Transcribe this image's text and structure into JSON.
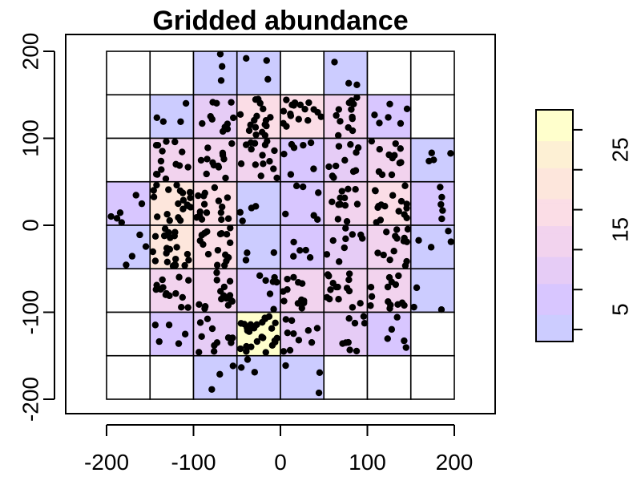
{
  "chart_data": {
    "type": "heatmap",
    "title": "Gridded abundance",
    "xlabel": "",
    "ylabel": "",
    "xlim": [
      -250,
      250
    ],
    "ylim": [
      -220,
      200
    ],
    "x_ticks": [
      -200,
      -100,
      0,
      100,
      200
    ],
    "y_ticks": [
      -200,
      -100,
      0,
      100,
      200
    ],
    "x_tick_labels": [
      "-200",
      "-100",
      "0",
      "100",
      "200"
    ],
    "y_tick_labels": [
      "-200",
      "-100",
      "0",
      "100",
      "200"
    ],
    "grid": {
      "x_edges": [
        -200,
        -150,
        -100,
        -50,
        0,
        50,
        100,
        150,
        200
      ],
      "y_edges": [
        -200,
        -150,
        -100,
        -50,
        0,
        50,
        100,
        150,
        200
      ],
      "counts_top_to_bottom": [
        [
          0,
          0,
          3,
          3,
          0,
          3,
          0,
          0
        ],
        [
          0,
          4,
          11,
          17,
          17,
          13,
          6,
          0
        ],
        [
          0,
          14,
          13,
          15,
          7,
          11,
          12,
          4
        ],
        [
          5,
          20,
          16,
          4,
          6,
          12,
          16,
          5
        ],
        [
          4,
          21,
          17,
          3,
          5,
          9,
          14,
          4
        ],
        [
          0,
          14,
          15,
          7,
          12,
          15,
          14,
          3
        ],
        [
          0,
          5,
          11,
          28,
          10,
          9,
          5,
          0
        ],
        [
          0,
          0,
          3,
          3,
          3,
          0,
          0,
          0
        ]
      ]
    },
    "colorbar": {
      "min": 1,
      "max": 30,
      "ticks": [
        5,
        15,
        25
      ],
      "tick_labels": [
        "5",
        "15",
        "25"
      ],
      "colors_low_to_high": [
        "#ccccff",
        "#d8c6ff",
        "#e6ccf6",
        "#f2d3ee",
        "#fbdde6",
        "#fde6dc",
        "#fdf0d4",
        "#ffffcc"
      ]
    },
    "points_note": "",
    "point_color": "#000000"
  }
}
